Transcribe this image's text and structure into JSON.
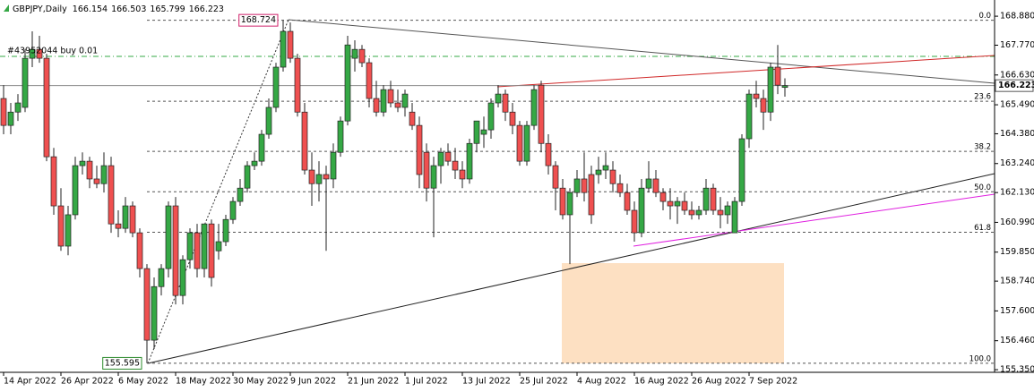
{
  "chart_data": {
    "type": "candlestick",
    "title": "GBPJPY,Daily",
    "order_label": "#43952044 buy 0.01",
    "up_color": "#35a845",
    "down_color": "#ef5050",
    "categories": [
      "14 Apr 2022",
      null,
      null,
      null,
      null,
      null,
      null,
      null,
      "26 Apr 2022",
      null,
      null,
      null,
      null,
      null,
      null,
      null,
      "6 May 2022",
      null,
      null,
      null,
      null,
      null,
      null,
      null,
      "18 May 2022",
      null,
      null,
      null,
      null,
      null,
      null,
      null,
      "30 May 2022",
      null,
      null,
      null,
      null,
      null,
      null,
      null,
      "9 Jun 2022",
      null,
      null,
      null,
      null,
      null,
      null,
      null,
      "21 Jun 2022",
      null,
      null,
      null,
      null,
      null,
      null,
      null,
      "1 Jul 2022",
      null,
      null,
      null,
      null,
      null,
      null,
      null,
      "13 Jul 2022",
      null,
      null,
      null,
      null,
      null,
      null,
      null,
      "25 Jul 2022",
      null,
      null,
      null,
      null,
      null,
      null,
      null,
      "4 Aug 2022",
      null,
      null,
      null,
      null,
      null,
      null,
      null,
      "16 Aug 2022",
      null,
      null,
      null,
      null,
      null,
      null,
      null,
      "26 Aug 2022",
      null,
      null,
      null,
      null,
      null,
      null,
      null,
      "7 Sep 2022",
      null,
      null,
      null,
      null,
      null
    ],
    "ohlc": {
      "open": [
        165.73,
        164.7,
        165.21,
        165.39,
        167.27,
        167.61,
        167.27,
        163.5,
        161.62,
        160.08,
        161.28,
        163.16,
        163.33,
        162.65,
        162.47,
        163.16,
        160.93,
        160.76,
        161.62,
        160.59,
        159.22,
        156.48,
        158.53,
        159.22,
        161.62,
        158.19,
        159.56,
        160.59,
        159.22,
        160.93,
        159.9,
        160.25,
        161.1,
        161.79,
        162.3,
        163.16,
        163.33,
        164.36,
        165.39,
        166.93,
        168.3,
        167.27,
        165.21,
        162.99,
        162.47,
        162.82,
        162.65,
        163.67,
        164.87,
        167.27,
        167.61,
        167.1,
        165.73,
        165.21,
        166.07,
        165.56,
        165.39,
        165.21,
        164.7,
        163.67,
        162.3,
        163.16,
        163.67,
        163.33,
        162.99,
        162.65,
        164.01,
        164.36,
        164.53,
        165.56,
        165.9,
        165.21,
        164.7,
        163.33,
        164.7,
        166.24,
        164.01,
        163.16,
        162.3,
        161.28,
        162.13,
        162.65,
        162.82,
        162.82,
        162.99,
        162.99,
        162.47,
        162.13,
        161.45,
        160.59,
        162.3,
        162.65,
        162.13,
        161.79,
        161.62,
        161.79,
        161.45,
        161.28,
        161.45,
        162.3,
        161.45,
        161.28,
        160.59,
        161.79,
        164.19,
        165.9,
        165.73,
        165.21,
        166.93,
        166.154
      ],
      "high": [
        166.24,
        165.56,
        165.9,
        167.61,
        168.3,
        168.13,
        167.44,
        163.84,
        162.3,
        161.62,
        163.5,
        163.67,
        163.5,
        163.16,
        163.67,
        163.5,
        161.45,
        161.96,
        161.79,
        160.76,
        159.39,
        158.88,
        159.39,
        161.79,
        161.96,
        159.73,
        160.76,
        160.93,
        160.93,
        161.1,
        160.93,
        161.28,
        161.96,
        162.65,
        163.33,
        163.67,
        164.53,
        165.73,
        167.1,
        168.724,
        168.64,
        167.44,
        165.56,
        163.67,
        163.33,
        163.16,
        164.01,
        165.04,
        168.13,
        167.96,
        167.78,
        167.27,
        166.41,
        166.24,
        166.41,
        166.07,
        166.07,
        165.56,
        165.04,
        164.01,
        163.5,
        163.84,
        164.01,
        163.84,
        163.33,
        164.19,
        164.87,
        165.04,
        165.73,
        166.24,
        166.07,
        165.56,
        164.87,
        164.87,
        166.24,
        166.41,
        164.36,
        163.33,
        162.65,
        162.3,
        162.99,
        163.67,
        163.16,
        163.5,
        163.67,
        163.33,
        162.82,
        162.47,
        161.79,
        162.65,
        163.33,
        162.99,
        162.3,
        162.3,
        161.96,
        162.13,
        161.79,
        161.62,
        162.65,
        162.47,
        161.96,
        161.79,
        161.96,
        164.36,
        166.07,
        166.41,
        166.07,
        167.1,
        167.78,
        166.503
      ],
      "low": [
        164.36,
        164.36,
        164.87,
        165.21,
        166.93,
        167.1,
        163.33,
        161.28,
        159.9,
        159.73,
        161.1,
        162.82,
        162.3,
        162.3,
        162.13,
        160.59,
        160.42,
        160.59,
        160.42,
        158.88,
        155.595,
        156.14,
        158.19,
        158.88,
        157.85,
        157.85,
        159.22,
        158.88,
        158.88,
        158.53,
        159.56,
        160.08,
        160.93,
        161.62,
        162.13,
        162.99,
        163.16,
        164.19,
        165.21,
        166.76,
        167.1,
        165.04,
        162.82,
        161.62,
        161.79,
        159.9,
        162.3,
        163.5,
        164.7,
        166.76,
        166.93,
        165.39,
        165.04,
        165.04,
        165.39,
        165.21,
        165.04,
        164.53,
        162.3,
        161.79,
        160.42,
        162.47,
        163.16,
        162.65,
        162.3,
        162.47,
        163.67,
        163.84,
        164.19,
        165.39,
        164.87,
        164.36,
        163.16,
        163.16,
        164.53,
        163.67,
        162.82,
        161.45,
        161.1,
        159.39,
        161.96,
        161.79,
        160.93,
        162.47,
        162.65,
        162.13,
        161.96,
        161.28,
        160.25,
        160.42,
        162.13,
        161.96,
        161.45,
        161.1,
        160.93,
        161.28,
        161.1,
        161.1,
        161.28,
        161.28,
        160.76,
        160.93,
        160.59,
        161.62,
        163.84,
        165.39,
        164.53,
        164.87,
        165.9,
        165.799
      ],
      "close": [
        164.7,
        165.21,
        165.56,
        167.27,
        167.61,
        167.27,
        163.5,
        161.62,
        160.08,
        161.28,
        163.16,
        163.33,
        162.65,
        162.47,
        163.16,
        160.93,
        160.76,
        161.62,
        160.59,
        159.22,
        156.48,
        158.53,
        159.22,
        161.62,
        158.19,
        159.56,
        160.59,
        159.22,
        160.93,
        158.88,
        160.25,
        161.1,
        161.79,
        162.3,
        163.16,
        163.33,
        164.36,
        165.39,
        166.93,
        168.3,
        167.27,
        165.21,
        162.99,
        162.47,
        162.82,
        162.65,
        163.67,
        164.87,
        167.78,
        167.61,
        167.1,
        165.73,
        165.21,
        166.07,
        165.56,
        165.39,
        165.9,
        164.7,
        162.82,
        162.3,
        163.16,
        163.67,
        163.33,
        162.99,
        162.65,
        164.01,
        164.87,
        164.53,
        165.56,
        165.9,
        165.21,
        164.7,
        163.33,
        164.7,
        166.07,
        164.01,
        163.16,
        162.3,
        161.28,
        162.13,
        162.65,
        162.13,
        161.28,
        162.99,
        163.16,
        162.47,
        162.13,
        161.45,
        160.59,
        162.3,
        162.65,
        162.13,
        161.79,
        161.62,
        161.79,
        161.45,
        161.28,
        161.45,
        162.3,
        161.45,
        161.28,
        161.62,
        161.79,
        164.19,
        165.9,
        165.73,
        165.21,
        166.93,
        166.24,
        166.223
      ]
    },
    "ylim": [
      155.25,
      169.5
    ],
    "yticks": [
      {
        "value": 168.88,
        "label": "168.880"
      },
      {
        "value": 167.77,
        "label": "167.770"
      },
      {
        "value": 166.63,
        "label": "166.630"
      },
      {
        "value": 165.49,
        "label": "165.490"
      },
      {
        "value": 164.38,
        "label": "164.380"
      },
      {
        "value": 163.24,
        "label": "163.240"
      },
      {
        "value": 162.13,
        "label": "162.130"
      },
      {
        "value": 160.99,
        "label": "160.990"
      },
      {
        "value": 159.85,
        "label": "159.850"
      },
      {
        "value": 158.74,
        "label": "158.740"
      },
      {
        "value": 157.6,
        "label": "157.600"
      },
      {
        "value": 156.46,
        "label": "156.460"
      },
      {
        "value": 155.35,
        "label": "155.350"
      }
    ],
    "annotations": [
      {
        "value": 168.724,
        "index": 39,
        "color": "#d0206a"
      },
      {
        "value": 155.595,
        "index": 20,
        "color": "#2a8a2a"
      }
    ],
    "fibonacci": [
      {
        "value": 0,
        "label": "0.0"
      },
      23.6,
      38.2,
      {
        "value": 50,
        "label": "50.0"
      },
      61.8,
      {
        "value": 100,
        "label": "100.0"
      }
    ]
  }
}
